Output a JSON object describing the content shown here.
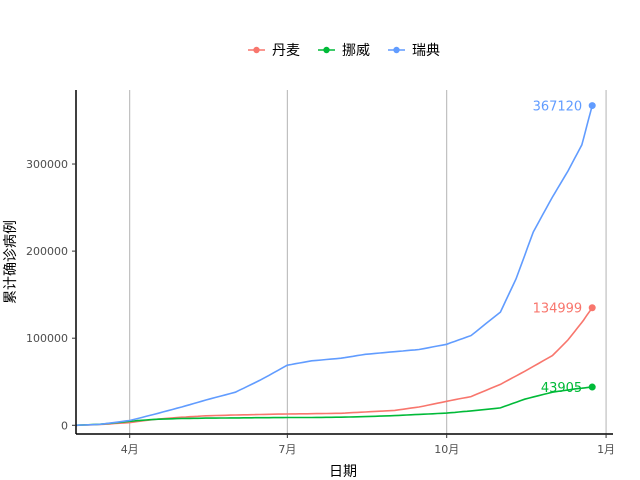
{
  "chart_data": {
    "type": "line",
    "title": "",
    "xlabel": "日期",
    "ylabel": "累计确诊病例",
    "x_axis": {
      "type": "date",
      "range": [
        "2020-03-01",
        "2021-01-05"
      ],
      "ticks": [
        {
          "date": "2020-04-01",
          "label": "4月"
        },
        {
          "date": "2020-07-01",
          "label": "7月"
        },
        {
          "date": "2020-10-01",
          "label": "10月"
        },
        {
          "date": "2021-01-01",
          "label": "1月"
        }
      ]
    },
    "y_axis": {
      "range": [
        -10000,
        385000
      ],
      "ticks": [
        0,
        100000,
        200000,
        300000
      ]
    },
    "grid": {
      "vertical": true,
      "horizontal": false
    },
    "legend": {
      "position": "top"
    },
    "series": [
      {
        "name": "丹麦",
        "color": "#F8766D",
        "end_label": "134999",
        "points": [
          [
            "2020-03-01",
            0
          ],
          [
            "2020-03-15",
            900
          ],
          [
            "2020-04-01",
            3100
          ],
          [
            "2020-04-15",
            6700
          ],
          [
            "2020-05-01",
            9300
          ],
          [
            "2020-05-15",
            10900
          ],
          [
            "2020-06-01",
            11800
          ],
          [
            "2020-06-15",
            12400
          ],
          [
            "2020-07-01",
            13000
          ],
          [
            "2020-07-15",
            13300
          ],
          [
            "2020-08-01",
            13800
          ],
          [
            "2020-08-15",
            15300
          ],
          [
            "2020-09-01",
            17100
          ],
          [
            "2020-09-15",
            21000
          ],
          [
            "2020-10-01",
            27500
          ],
          [
            "2020-10-15",
            33000
          ],
          [
            "2020-11-01",
            47000
          ],
          [
            "2020-11-15",
            62000
          ],
          [
            "2020-12-01",
            80000
          ],
          [
            "2020-12-10",
            98000
          ],
          [
            "2020-12-18",
            118000
          ],
          [
            "2020-12-24",
            134999
          ]
        ]
      },
      {
        "name": "挪威",
        "color": "#00BA38",
        "end_label": "43905",
        "points": [
          [
            "2020-03-01",
            0
          ],
          [
            "2020-03-15",
            1200
          ],
          [
            "2020-04-01",
            4600
          ],
          [
            "2020-04-15",
            6800
          ],
          [
            "2020-05-01",
            7800
          ],
          [
            "2020-05-15",
            8200
          ],
          [
            "2020-06-01",
            8500
          ],
          [
            "2020-06-15",
            8700
          ],
          [
            "2020-07-01",
            8900
          ],
          [
            "2020-07-15",
            9000
          ],
          [
            "2020-08-01",
            9300
          ],
          [
            "2020-08-15",
            10000
          ],
          [
            "2020-09-01",
            11100
          ],
          [
            "2020-09-15",
            12500
          ],
          [
            "2020-10-01",
            14000
          ],
          [
            "2020-10-15",
            16500
          ],
          [
            "2020-11-01",
            20000
          ],
          [
            "2020-11-15",
            30000
          ],
          [
            "2020-12-01",
            38000
          ],
          [
            "2020-12-15",
            42000
          ],
          [
            "2020-12-24",
            43905
          ]
        ]
      },
      {
        "name": "瑞典",
        "color": "#619CFF",
        "end_label": "367120",
        "points": [
          [
            "2020-03-01",
            0
          ],
          [
            "2020-03-15",
            1100
          ],
          [
            "2020-04-01",
            5500
          ],
          [
            "2020-04-15",
            12500
          ],
          [
            "2020-05-01",
            21000
          ],
          [
            "2020-05-15",
            29000
          ],
          [
            "2020-06-01",
            38000
          ],
          [
            "2020-06-15",
            51500
          ],
          [
            "2020-07-01",
            69000
          ],
          [
            "2020-07-15",
            74000
          ],
          [
            "2020-08-01",
            77000
          ],
          [
            "2020-08-15",
            81500
          ],
          [
            "2020-09-01",
            84500
          ],
          [
            "2020-09-15",
            87000
          ],
          [
            "2020-10-01",
            93000
          ],
          [
            "2020-10-15",
            103000
          ],
          [
            "2020-11-01",
            130000
          ],
          [
            "2020-11-10",
            168000
          ],
          [
            "2020-11-20",
            222000
          ],
          [
            "2020-12-01",
            262000
          ],
          [
            "2020-12-10",
            292000
          ],
          [
            "2020-12-18",
            322000
          ],
          [
            "2020-12-24",
            367120
          ]
        ]
      }
    ]
  }
}
